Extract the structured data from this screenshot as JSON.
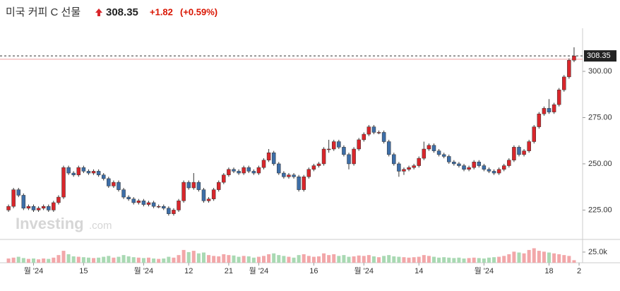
{
  "header": {
    "title": "미국 커피 C 선물",
    "price": 308.35,
    "change": "+1.82",
    "change_pct": "(+0.59%)"
  },
  "watermark": {
    "brand": "Investing",
    "suffix": ".com"
  },
  "chart_data": {
    "type": "candlestick",
    "up_color": "#d9262b",
    "down_color": "#3d6ea8",
    "volume_up_color": "#f2a7a9",
    "volume_down_color": "#a9d9b3",
    "previous_close": 306.53,
    "ylim": [
      209.5,
      323.3
    ],
    "yticks": [
      {
        "value": 225,
        "label": "225.00"
      },
      {
        "value": 250,
        "label": "250.00"
      },
      {
        "value": 275,
        "label": "275.00"
      },
      {
        "value": 300,
        "label": "300.00"
      }
    ],
    "volume_ylim": [
      0,
      53
    ],
    "volume_yticks": [
      {
        "value": 25,
        "label": "25.0k"
      }
    ],
    "xlim": [
      -1.7,
      114.7
    ],
    "xticks": [
      {
        "value": 5,
        "label": "월 '24"
      },
      {
        "value": 15,
        "label": "15"
      },
      {
        "value": 27,
        "label": "월 '24"
      },
      {
        "value": 36,
        "label": "12"
      },
      {
        "value": 44,
        "label": "21"
      },
      {
        "value": 50,
        "label": "월 '24"
      },
      {
        "value": 61,
        "label": "16"
      },
      {
        "value": 71,
        "label": "월 '24"
      },
      {
        "value": 82,
        "label": "14"
      },
      {
        "value": 95,
        "label": "월 '24"
      },
      {
        "value": 108,
        "label": "18"
      },
      {
        "value": 114,
        "label": "2"
      }
    ],
    "open": [
      225,
      227,
      236,
      233,
      226,
      227,
      225,
      226,
      227,
      225,
      229,
      232,
      248,
      245,
      244,
      248,
      246,
      245,
      246,
      244,
      242,
      238,
      240,
      236,
      232,
      231,
      229,
      230,
      228,
      229,
      227,
      227,
      226,
      223,
      225,
      230,
      240,
      237,
      240,
      236,
      230,
      231,
      236,
      240,
      244,
      247,
      246,
      245,
      248,
      246,
      245,
      248,
      252,
      256,
      250,
      245,
      243,
      244,
      243,
      236,
      243,
      247,
      249,
      250,
      258,
      258,
      262,
      259,
      255,
      250,
      258,
      263,
      266,
      270,
      267,
      267,
      262,
      255,
      250,
      246,
      247,
      248,
      249,
      253,
      258,
      260,
      257,
      255,
      254,
      251,
      250,
      249,
      247,
      248,
      251,
      249,
      247,
      246,
      245,
      247,
      249,
      252,
      259,
      255,
      257,
      262,
      270,
      277,
      280,
      278,
      282,
      290,
      297,
      306
    ],
    "high": [
      228,
      237,
      237,
      234,
      228,
      228,
      227,
      228,
      228,
      230,
      233,
      249,
      249,
      246,
      249,
      249,
      247,
      247,
      247,
      245,
      243,
      241,
      241,
      237,
      233,
      232,
      231,
      231,
      230,
      230,
      228,
      228,
      227,
      226,
      231,
      241,
      241,
      245,
      241,
      237,
      232,
      237,
      241,
      245,
      248,
      248,
      247,
      249,
      249,
      247,
      249,
      253,
      258,
      257,
      251,
      246,
      245,
      245,
      244,
      244,
      248,
      250,
      251,
      259,
      263,
      263,
      263,
      260,
      256,
      259,
      264,
      267,
      271,
      271,
      268,
      268,
      263,
      256,
      251,
      248,
      249,
      250,
      254,
      262,
      261,
      261,
      258,
      256,
      255,
      252,
      251,
      250,
      249,
      252,
      252,
      250,
      248,
      247,
      248,
      250,
      253,
      260,
      260,
      258,
      263,
      271,
      278,
      281,
      285,
      283,
      291,
      298,
      307,
      313
    ],
    "low": [
      224,
      226,
      232,
      225,
      225,
      224,
      224,
      225,
      224,
      224,
      228,
      231,
      244,
      243,
      243,
      245,
      244,
      244,
      243,
      241,
      237,
      237,
      235,
      231,
      230,
      228,
      228,
      227,
      227,
      226,
      226,
      225,
      222,
      222,
      224,
      229,
      236,
      236,
      235,
      229,
      229,
      230,
      235,
      239,
      243,
      245,
      244,
      244,
      245,
      244,
      244,
      247,
      251,
      249,
      244,
      242,
      242,
      242,
      235,
      235,
      242,
      246,
      248,
      249,
      256,
      257,
      258,
      254,
      247,
      249,
      257,
      262,
      265,
      266,
      266,
      261,
      254,
      249,
      243,
      244,
      246,
      247,
      248,
      252,
      257,
      256,
      254,
      253,
      250,
      249,
      248,
      246,
      246,
      247,
      248,
      246,
      245,
      244,
      244,
      246,
      248,
      251,
      254,
      254,
      256,
      261,
      269,
      276,
      277,
      277,
      281,
      289,
      296,
      305
    ],
    "close": [
      227,
      236,
      233,
      226,
      227,
      225,
      226,
      227,
      225,
      229,
      232,
      248,
      245,
      244,
      248,
      246,
      245,
      246,
      244,
      242,
      238,
      240,
      236,
      232,
      231,
      229,
      230,
      228,
      229,
      227,
      227,
      226,
      223,
      225,
      230,
      240,
      237,
      240,
      236,
      230,
      231,
      236,
      240,
      244,
      247,
      246,
      245,
      248,
      246,
      245,
      248,
      252,
      256,
      250,
      245,
      243,
      244,
      243,
      236,
      243,
      247,
      249,
      250,
      258,
      258,
      262,
      259,
      255,
      250,
      258,
      263,
      266,
      270,
      267,
      267,
      262,
      255,
      250,
      246,
      247,
      248,
      249,
      253,
      258,
      260,
      257,
      255,
      254,
      251,
      250,
      249,
      247,
      248,
      251,
      249,
      247,
      246,
      245,
      247,
      249,
      252,
      259,
      255,
      257,
      262,
      270,
      277,
      280,
      278,
      282,
      290,
      297,
      306,
      308.35
    ],
    "volume": [
      10,
      12,
      14,
      11,
      9,
      10,
      8,
      10,
      9,
      12,
      18,
      28,
      20,
      15,
      14,
      13,
      12,
      11,
      12,
      14,
      16,
      12,
      14,
      18,
      15,
      13,
      12,
      11,
      12,
      10,
      9,
      10,
      14,
      12,
      18,
      30,
      25,
      28,
      22,
      24,
      18,
      16,
      15,
      20,
      18,
      17,
      14,
      16,
      15,
      12,
      14,
      16,
      20,
      22,
      18,
      16,
      14,
      12,
      18,
      20,
      16,
      14,
      15,
      22,
      18,
      20,
      16,
      18,
      14,
      15,
      17,
      16,
      18,
      15,
      13,
      16,
      18,
      15,
      14,
      13,
      12,
      13,
      14,
      18,
      16,
      14,
      12,
      13,
      12,
      11,
      12,
      10,
      11,
      12,
      11,
      10,
      12,
      13,
      14,
      16,
      20,
      26,
      24,
      22,
      30,
      34,
      28,
      26,
      24,
      22,
      20,
      18,
      16,
      6
    ]
  }
}
